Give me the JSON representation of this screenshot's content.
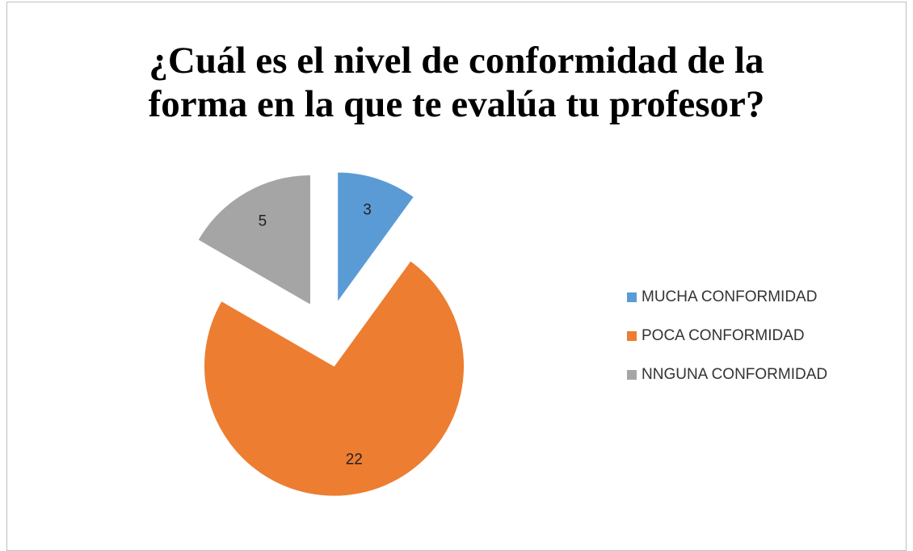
{
  "chart_data": {
    "type": "pie",
    "title": "¿Cuál es el nivel de conformidad de la forma en la que te evalúa tu profesor?",
    "categories": [
      "MUCHA CONFORMIDAD",
      "POCA CONFORMIDAD",
      "NNGUNA CONFORMIDAD"
    ],
    "values": [
      3,
      22,
      5
    ],
    "colors": [
      "#5b9bd5",
      "#ed7d31",
      "#a5a5a5"
    ],
    "legend": "right"
  }
}
